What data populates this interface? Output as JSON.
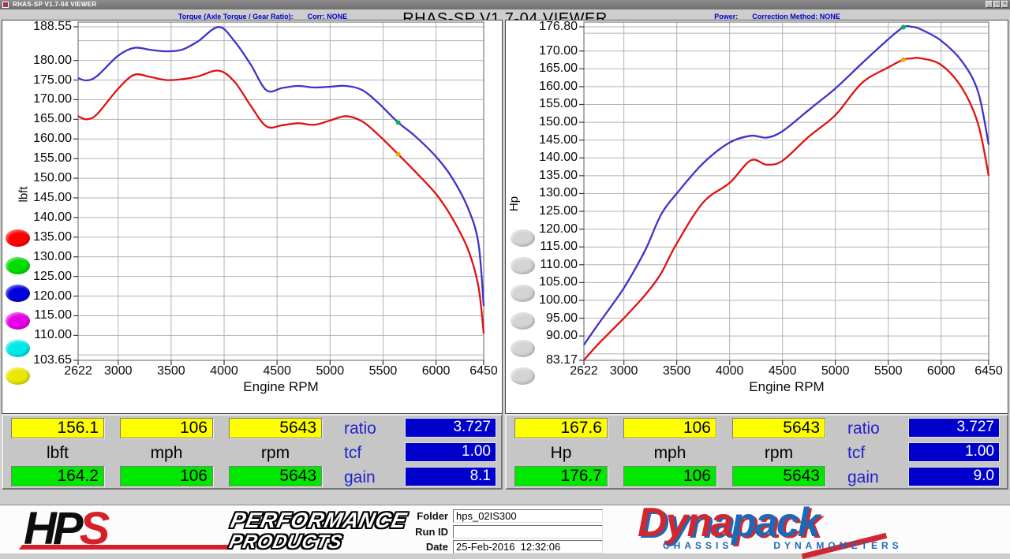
{
  "window": {
    "title": "RHAS-SP V1.7-04 VIEWER",
    "big_title": "RHAS-SP V1.7-04  VIEWER",
    "buttons": [
      "minimize",
      "maximize",
      "close"
    ]
  },
  "colors": {
    "curve_blue": "#3d34c8",
    "curve_red": "#e01111",
    "grid": "#b2b2b2",
    "plot_border": "#7a7a7a",
    "value_yellow": "#ffff00",
    "value_green": "#00e800",
    "value_blue_box": "#0000cc",
    "side_label_blue": "#2222cc",
    "header_blue": "#0000cc",
    "cursor_green": "#00b450",
    "cursor_yellow": "#f0a800"
  },
  "panels": {
    "torque": {
      "header_left": "Torque (Axle Torque / Gear Ratio):",
      "header_right": "Corr: NONE",
      "ylabel": "lbft",
      "xlabel": "Engine RPM",
      "legend_buttons": [
        "#ff0000",
        "#00dd00",
        "#0000dd",
        "#e800e8",
        "#00e8e8",
        "#e8e800"
      ]
    },
    "power": {
      "header_left": "Power:",
      "header_right": "Correction Method: NONE",
      "ylabel": "Hp",
      "xlabel": "Engine RPM",
      "legend_buttons": [
        "#d4d4d4",
        "#d4d4d4",
        "#d4d4d4",
        "#d4d4d4",
        "#d4d4d4",
        "#d4d4d4"
      ]
    }
  },
  "readouts": {
    "torque": {
      "top": [
        "156.1",
        "106",
        "5643"
      ],
      "units": [
        "lbft",
        "mph",
        "rpm"
      ],
      "bottom": [
        "164.2",
        "106",
        "5643"
      ],
      "side": [
        [
          "ratio",
          "3.727"
        ],
        [
          "tcf",
          "1.00"
        ],
        [
          "gain",
          "8.1"
        ]
      ]
    },
    "power": {
      "top": [
        "167.6",
        "106",
        "5643"
      ],
      "units": [
        "Hp",
        "mph",
        "rpm"
      ],
      "bottom": [
        "176.7",
        "106",
        "5643"
      ],
      "side": [
        [
          "ratio",
          "3.727"
        ],
        [
          "tcf",
          "1.00"
        ],
        [
          "gain",
          "9.0"
        ]
      ]
    }
  },
  "footer": {
    "fields": [
      {
        "label": "Folder",
        "value": "hps_02IS300"
      },
      {
        "label": "Run ID",
        "value": ""
      },
      {
        "label": "Date",
        "value": "25-Feb-2016  12:32:06"
      }
    ],
    "hps": {
      "part1": "HP",
      "part2": "S",
      "line1": "PERFORMANCE",
      "line2": "PRODUCTS"
    },
    "dynapack": {
      "part1": "Dyna",
      "part2": "pack",
      "sub1": "CHASSIS",
      "sub2": "DYNAMOMETERS"
    }
  },
  "chart_data": [
    {
      "type": "line",
      "title": "Torque (Axle Torque / Gear Ratio): Corr: NONE",
      "xlabel": "Engine RPM",
      "ylabel": "lbft",
      "xlim": [
        2622,
        6450
      ],
      "ylim": [
        103.65,
        188.55
      ],
      "grid": true,
      "xtick_labels": [
        "2622",
        "3000",
        "3500",
        "4000",
        "4500",
        "5000",
        "5500",
        "6000",
        "6450"
      ],
      "xtick_values": [
        2622,
        3000,
        3500,
        4000,
        4500,
        5000,
        5500,
        6000,
        6450
      ],
      "ytick_labels": [
        "188.55",
        "180.00",
        "175.00",
        "170.00",
        "165.00",
        "160.00",
        "155.00",
        "150.00",
        "145.00",
        "140.00",
        "135.00",
        "130.00",
        "125.00",
        "120.00",
        "115.00",
        "110.00",
        "103.65"
      ],
      "ytick_values": [
        188.55,
        180,
        175,
        170,
        165,
        160,
        155,
        150,
        145,
        140,
        135,
        130,
        125,
        120,
        115,
        110,
        103.65
      ],
      "ygrid_values": [
        188.55,
        185,
        180,
        175,
        170,
        165,
        160,
        155,
        150,
        145,
        140,
        135,
        130,
        125,
        120,
        115,
        110,
        105
      ],
      "xgrid_values": [
        3000,
        3500,
        4000,
        4500,
        5000,
        5500,
        6000,
        6450
      ],
      "cursor_rpm": 5643,
      "series": [
        {
          "name": "blue-run",
          "color": "#3d34c8",
          "cursor_value": 164.2,
          "cursor_color": "#00b450",
          "x": [
            2622,
            2700,
            2800,
            3000,
            3150,
            3300,
            3450,
            3600,
            3750,
            3950,
            4100,
            4250,
            4400,
            4550,
            4700,
            4850,
            5000,
            5150,
            5300,
            5450,
            5643,
            5800,
            6000,
            6150,
            6300,
            6400,
            6450
          ],
          "values": [
            175.5,
            174.9,
            176.0,
            181.2,
            183.2,
            182.7,
            182.3,
            182.7,
            184.8,
            188.5,
            184.8,
            179.0,
            172.4,
            173.0,
            173.5,
            173.1,
            173.3,
            173.5,
            172.5,
            169.3,
            164.2,
            160.8,
            155.5,
            150.2,
            142.5,
            133.5,
            117.5
          ]
        },
        {
          "name": "red-run",
          "color": "#e01111",
          "cursor_value": 156.1,
          "cursor_color": "#f0a800",
          "x": [
            2622,
            2700,
            2800,
            3000,
            3150,
            3300,
            3450,
            3600,
            3750,
            3950,
            4100,
            4250,
            4400,
            4550,
            4700,
            4850,
            5000,
            5150,
            5300,
            5450,
            5643,
            5800,
            6000,
            6150,
            6300,
            6400,
            6450
          ],
          "values": [
            165.8,
            165.0,
            166.3,
            172.8,
            176.3,
            175.8,
            175.0,
            175.2,
            175.9,
            177.4,
            174.5,
            168.5,
            163.2,
            163.5,
            164.0,
            163.6,
            164.7,
            165.8,
            164.5,
            161.2,
            156.1,
            151.8,
            146.0,
            140.0,
            132.0,
            122.5,
            110.5
          ]
        }
      ]
    },
    {
      "type": "line",
      "title": "Power: Correction Method: NONE",
      "xlabel": "Engine RPM",
      "ylabel": "Hp",
      "xlim": [
        2622,
        6450
      ],
      "ylim": [
        83.17,
        176.8
      ],
      "grid": true,
      "xtick_labels": [
        "2622",
        "3000",
        "3500",
        "4000",
        "4500",
        "5000",
        "5500",
        "6000",
        "6450"
      ],
      "xtick_values": [
        2622,
        3000,
        3500,
        4000,
        4500,
        5000,
        5500,
        6000,
        6450
      ],
      "ytick_labels": [
        "176.80",
        "170.00",
        "165.00",
        "160.00",
        "155.00",
        "150.00",
        "145.00",
        "140.00",
        "135.00",
        "130.00",
        "125.00",
        "120.00",
        "115.00",
        "110.00",
        "105.00",
        "100.00",
        "95.00",
        "90.00",
        "83.17"
      ],
      "ytick_values": [
        176.8,
        170,
        165,
        160,
        155,
        150,
        145,
        140,
        135,
        130,
        125,
        120,
        115,
        110,
        105,
        100,
        95,
        90,
        83.17
      ],
      "ygrid_values": [
        176.8,
        175,
        170,
        165,
        160,
        155,
        150,
        145,
        140,
        135,
        130,
        125,
        120,
        115,
        110,
        105,
        100,
        95,
        90,
        85
      ],
      "xgrid_values": [
        3000,
        3500,
        4000,
        4500,
        5000,
        5500,
        6000,
        6450
      ],
      "cursor_rpm": 5643,
      "series": [
        {
          "name": "blue-run",
          "color": "#3d34c8",
          "cursor_value": 176.7,
          "cursor_color": "#00b450",
          "x": [
            2622,
            2750,
            3000,
            3200,
            3350,
            3500,
            3750,
            4000,
            4200,
            4350,
            4500,
            4750,
            5000,
            5250,
            5500,
            5643,
            5720,
            5800,
            6000,
            6200,
            6350,
            6450
          ],
          "values": [
            87.5,
            93.0,
            103.5,
            114.0,
            124.0,
            130.0,
            138.5,
            144.3,
            146.2,
            145.7,
            147.5,
            153.5,
            159.5,
            166.5,
            173.3,
            176.7,
            176.8,
            176.2,
            172.9,
            167.0,
            158.5,
            143.7
          ]
        },
        {
          "name": "red-run",
          "color": "#e01111",
          "cursor_value": 167.6,
          "cursor_color": "#f0a800",
          "x": [
            2622,
            2750,
            3000,
            3200,
            3350,
            3500,
            3750,
            4000,
            4200,
            4350,
            4500,
            4750,
            5000,
            5250,
            5500,
            5643,
            5720,
            5800,
            6000,
            6200,
            6350,
            6450
          ],
          "values": [
            83.2,
            87.5,
            95.0,
            101.5,
            107.5,
            116.0,
            127.5,
            133.0,
            139.3,
            138.1,
            139.2,
            146.0,
            152.0,
            161.0,
            165.4,
            167.6,
            167.9,
            168.0,
            166.1,
            159.5,
            149.5,
            135.0
          ]
        }
      ]
    }
  ]
}
